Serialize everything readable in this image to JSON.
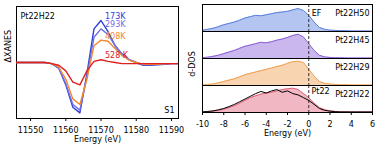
{
  "chart_data": [
    {
      "type": "line",
      "x_label": "Energy (eV)",
      "y_label": "ΔXANES",
      "annotations": [
        "Pt22H22",
        "S1"
      ],
      "x": [
        11546,
        11548,
        11550,
        11552,
        11554,
        11556,
        11558,
        11560,
        11562,
        11564,
        11566,
        11568,
        11570,
        11572,
        11574,
        11576,
        11578,
        11580,
        11582,
        11584,
        11586,
        11588,
        11590,
        11592
      ],
      "series": [
        {
          "name": "173K",
          "color": "#2a3fd6",
          "values": [
            0,
            0,
            0,
            0,
            0,
            -0.02,
            -0.1,
            -0.4,
            -0.8,
            -0.9,
            -0.2,
            0.6,
            0.75,
            0.55,
            0.3,
            0.15,
            0.05,
            0,
            -0.05,
            -0.05,
            -0.04,
            -0.03,
            -0.02,
            -0.02
          ]
        },
        {
          "name": "293K",
          "color": "#6f6fe8",
          "values": [
            0,
            0,
            0,
            0,
            0,
            -0.02,
            -0.1,
            -0.38,
            -0.75,
            -0.85,
            -0.25,
            0.45,
            0.6,
            0.5,
            0.3,
            0.15,
            0.05,
            0,
            -0.04,
            -0.04,
            -0.03,
            -0.03,
            -0.02,
            -0.02
          ]
        },
        {
          "name": "408K",
          "color": "#f08a30",
          "values": [
            0,
            0,
            0,
            0,
            0,
            -0.02,
            -0.08,
            -0.3,
            -0.65,
            -0.75,
            -0.3,
            0.3,
            0.4,
            0.38,
            0.25,
            0.12,
            0.04,
            0,
            -0.03,
            -0.03,
            -0.03,
            -0.02,
            -0.02,
            -0.02
          ]
        },
        {
          "name": "528 K",
          "color": "#e02020",
          "values": [
            0,
            0,
            0,
            0,
            0,
            -0.02,
            -0.05,
            -0.15,
            -0.35,
            -0.4,
            -0.15,
            0.02,
            0.05,
            0.02,
            0,
            -0.02,
            -0.02,
            -0.02,
            -0.02,
            -0.02,
            -0.02,
            -0.02,
            -0.02,
            -0.02
          ]
        }
      ],
      "xlim": [
        11546,
        11592
      ],
      "xticks": [
        11550,
        11560,
        11570,
        11580,
        11590
      ],
      "ylim": [
        -1,
        1
      ],
      "tick_labels": "x"
    },
    {
      "type": "area",
      "x_label": "Energy (eV)",
      "y_label": "d-DOS",
      "annotations": [
        {
          "text": "EF",
          "x": 0
        }
      ],
      "x": [
        -10,
        -9.5,
        -9,
        -8.5,
        -8,
        -7.5,
        -7,
        -6.5,
        -6,
        -5.5,
        -5,
        -4.5,
        -4,
        -3.5,
        -3,
        -2.5,
        -2,
        -1.5,
        -1,
        -0.5,
        0,
        0.5,
        1,
        1.5,
        2,
        2.5,
        3,
        3.5,
        4,
        4.5,
        5,
        5.5,
        6
      ],
      "series": [
        {
          "name": "Pt22H50",
          "color": "#5a7fe0",
          "values": [
            0.05,
            0.08,
            0.12,
            0.18,
            0.25,
            0.3,
            0.35,
            0.42,
            0.5,
            0.55,
            0.6,
            0.58,
            0.62,
            0.66,
            0.7,
            0.72,
            0.75,
            0.8,
            0.85,
            0.78,
            0.6,
            0.35,
            0.15,
            0.08,
            0.05,
            0.04,
            0.03,
            0.03,
            0.02,
            0.02,
            0.02,
            0.02,
            0.02
          ]
        },
        {
          "name": "Pt22H45",
          "color": "#8a5fd6",
          "values": [
            0.03,
            0.05,
            0.08,
            0.12,
            0.18,
            0.24,
            0.3,
            0.38,
            0.45,
            0.5,
            0.55,
            0.6,
            0.58,
            0.62,
            0.68,
            0.72,
            0.78,
            0.85,
            0.9,
            0.8,
            0.55,
            0.3,
            0.12,
            0.06,
            0.04,
            0.03,
            0.03,
            0.02,
            0.02,
            0.02,
            0.02,
            0.02,
            0.02
          ]
        },
        {
          "name": "Pt22H29",
          "color": "#f0a050",
          "values": [
            0.02,
            0.04,
            0.06,
            0.1,
            0.15,
            0.2,
            0.25,
            0.32,
            0.4,
            0.45,
            0.5,
            0.55,
            0.6,
            0.65,
            0.7,
            0.75,
            0.82,
            0.88,
            0.9,
            0.85,
            0.6,
            0.35,
            0.15,
            0.08,
            0.05,
            0.04,
            0.03,
            0.03,
            0.02,
            0.02,
            0.02,
            0.02,
            0.02
          ]
        },
        {
          "name": "Pt22H22",
          "color": "#e0607a",
          "values": [
            0.02,
            0.03,
            0.05,
            0.08,
            0.12,
            0.18,
            0.25,
            0.35,
            0.45,
            0.55,
            0.62,
            0.68,
            0.72,
            0.75,
            0.8,
            0.85,
            0.88,
            0.9,
            0.85,
            0.7,
            0.55,
            0.35,
            0.18,
            0.1,
            0.06,
            0.04,
            0.03,
            0.03,
            0.02,
            0.02,
            0.02,
            0.02,
            0.02
          ]
        },
        {
          "name": "Pt22",
          "type": "line",
          "color": "#000000",
          "values": [
            0.02,
            0.04,
            0.06,
            0.1,
            0.15,
            0.22,
            0.3,
            0.4,
            0.5,
            0.6,
            0.7,
            0.78,
            0.72,
            0.8,
            0.85,
            0.75,
            0.8,
            0.7,
            0.65,
            0.55,
            0.45,
            0.3,
            0.15,
            0.08,
            0.05,
            0.03,
            0.02,
            0.02,
            0.02,
            0.02,
            0.02,
            0.02,
            0.02
          ]
        }
      ],
      "xlim": [
        -10,
        6
      ],
      "xticks": [
        -10,
        -8,
        -6,
        -4,
        -2,
        0,
        2,
        4,
        6
      ],
      "ylim": [
        0,
        1
      ],
      "tick_labels": "x"
    }
  ]
}
